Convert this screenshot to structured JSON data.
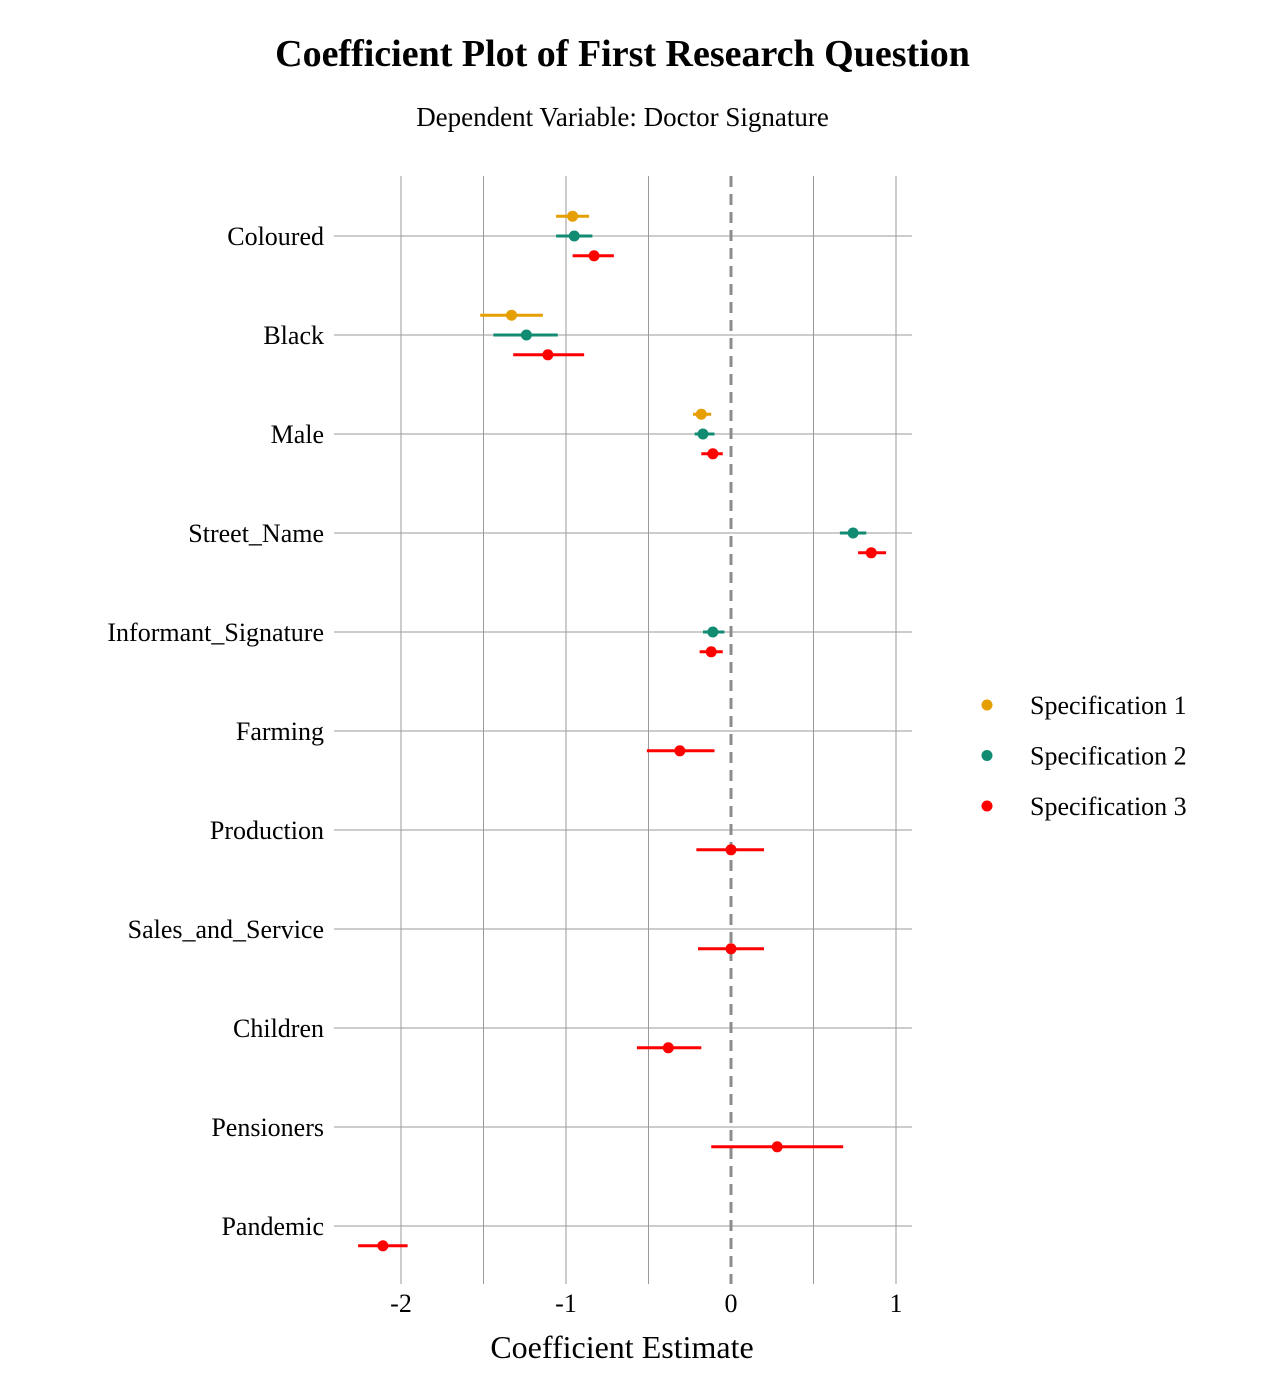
{
  "chart_data": {
    "type": "scatter",
    "subtype": "coefficient-plot",
    "title": "Coefficient Plot of First Research Question",
    "subtitle": "Dependent Variable: Doctor Signature",
    "xlabel": "Coefficient Estimate",
    "ylabel": "",
    "xlim": [
      -2.4,
      1.1
    ],
    "xticks": [
      -2,
      -1,
      0,
      1
    ],
    "reference_line": 0,
    "grid": true,
    "legend_position": "right",
    "categories": [
      "Coloured",
      "Black",
      "Male",
      "Street_Name",
      "Informant_Signature",
      "Farming",
      "Production",
      "Sales_and_Service",
      "Children",
      "Pensioners",
      "Pandemic"
    ],
    "series": [
      {
        "name": "Specification 1",
        "color": "#E69F00",
        "points": [
          {
            "term": "Coloured",
            "estimate": -0.96,
            "low": -1.06,
            "high": -0.86
          },
          {
            "term": "Black",
            "estimate": -1.33,
            "low": -1.52,
            "high": -1.14
          },
          {
            "term": "Male",
            "estimate": -0.18,
            "low": -0.23,
            "high": -0.12
          }
        ]
      },
      {
        "name": "Specification 2",
        "color": "#118C73",
        "points": [
          {
            "term": "Coloured",
            "estimate": -0.95,
            "low": -1.06,
            "high": -0.84
          },
          {
            "term": "Black",
            "estimate": -1.24,
            "low": -1.44,
            "high": -1.05
          },
          {
            "term": "Male",
            "estimate": -0.17,
            "low": -0.22,
            "high": -0.1
          },
          {
            "term": "Street_Name",
            "estimate": 0.74,
            "low": 0.66,
            "high": 0.82
          },
          {
            "term": "Informant_Signature",
            "estimate": -0.11,
            "low": -0.17,
            "high": -0.04
          }
        ]
      },
      {
        "name": "Specification 3",
        "color": "#FF0000",
        "points": [
          {
            "term": "Coloured",
            "estimate": -0.83,
            "low": -0.96,
            "high": -0.71
          },
          {
            "term": "Black",
            "estimate": -1.11,
            "low": -1.32,
            "high": -0.89
          },
          {
            "term": "Male",
            "estimate": -0.11,
            "low": -0.18,
            "high": -0.05
          },
          {
            "term": "Street_Name",
            "estimate": 0.85,
            "low": 0.77,
            "high": 0.94
          },
          {
            "term": "Informant_Signature",
            "estimate": -0.12,
            "low": -0.19,
            "high": -0.05
          },
          {
            "term": "Farming",
            "estimate": -0.31,
            "low": -0.51,
            "high": -0.1
          },
          {
            "term": "Production",
            "estimate": 0.0,
            "low": -0.21,
            "high": 0.2
          },
          {
            "term": "Sales_and_Service",
            "estimate": 0.0,
            "low": -0.2,
            "high": 0.2
          },
          {
            "term": "Children",
            "estimate": -0.38,
            "low": -0.57,
            "high": -0.18
          },
          {
            "term": "Pensioners",
            "estimate": 0.28,
            "low": -0.12,
            "high": 0.68
          },
          {
            "term": "Pandemic",
            "estimate": -2.11,
            "low": -2.26,
            "high": -1.96
          }
        ]
      }
    ]
  }
}
